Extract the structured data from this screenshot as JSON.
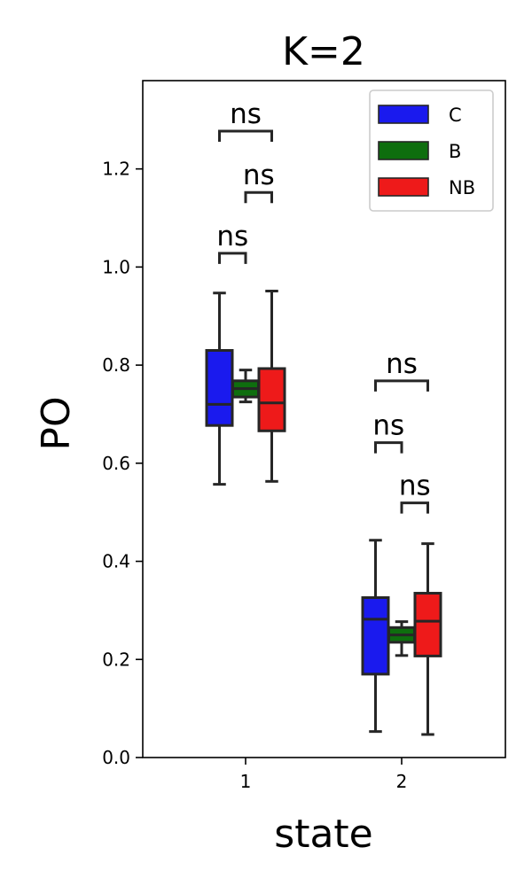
{
  "chart_data": {
    "type": "box",
    "title": "K=2",
    "xlabel": "state",
    "ylabel": "PO",
    "ylim": [
      0,
      1.38
    ],
    "yticks": [
      "0.0",
      "0.2",
      "0.4",
      "0.6",
      "0.8",
      "1.0",
      "1.2"
    ],
    "categories": [
      "1",
      "2"
    ],
    "legend_position": "top-right",
    "series": [
      {
        "name": "C",
        "color": "#1a1aee",
        "boxes": [
          {
            "min": 0.557,
            "q1": 0.677,
            "median": 0.72,
            "q3": 0.83,
            "max": 0.947
          },
          {
            "min": 0.053,
            "q1": 0.17,
            "median": 0.282,
            "q3": 0.326,
            "max": 0.443
          }
        ]
      },
      {
        "name": "B",
        "color": "#0e6e0e",
        "boxes": [
          {
            "min": 0.725,
            "q1": 0.735,
            "median": 0.752,
            "q3": 0.768,
            "max": 0.79
          },
          {
            "min": 0.208,
            "q1": 0.235,
            "median": 0.25,
            "q3": 0.265,
            "max": 0.277
          }
        ]
      },
      {
        "name": "NB",
        "color": "#ee1a1a",
        "boxes": [
          {
            "min": 0.563,
            "q1": 0.666,
            "median": 0.723,
            "q3": 0.793,
            "max": 0.951
          },
          {
            "min": 0.047,
            "q1": 0.207,
            "median": 0.278,
            "q3": 0.335,
            "max": 0.436
          }
        ]
      }
    ],
    "annotations": [
      {
        "category": 0,
        "from": 0,
        "to": 1,
        "y": 1.028,
        "text": "ns"
      },
      {
        "category": 0,
        "from": 1,
        "to": 2,
        "y": 1.152,
        "text": "ns"
      },
      {
        "category": 0,
        "from": 0,
        "to": 2,
        "y": 1.277,
        "text": "ns"
      },
      {
        "category": 1,
        "from": 0,
        "to": 1,
        "y": 0.642,
        "text": "ns"
      },
      {
        "category": 1,
        "from": 1,
        "to": 2,
        "y": 0.519,
        "text": "ns"
      },
      {
        "category": 1,
        "from": 0,
        "to": 2,
        "y": 0.768,
        "text": "ns"
      }
    ]
  }
}
